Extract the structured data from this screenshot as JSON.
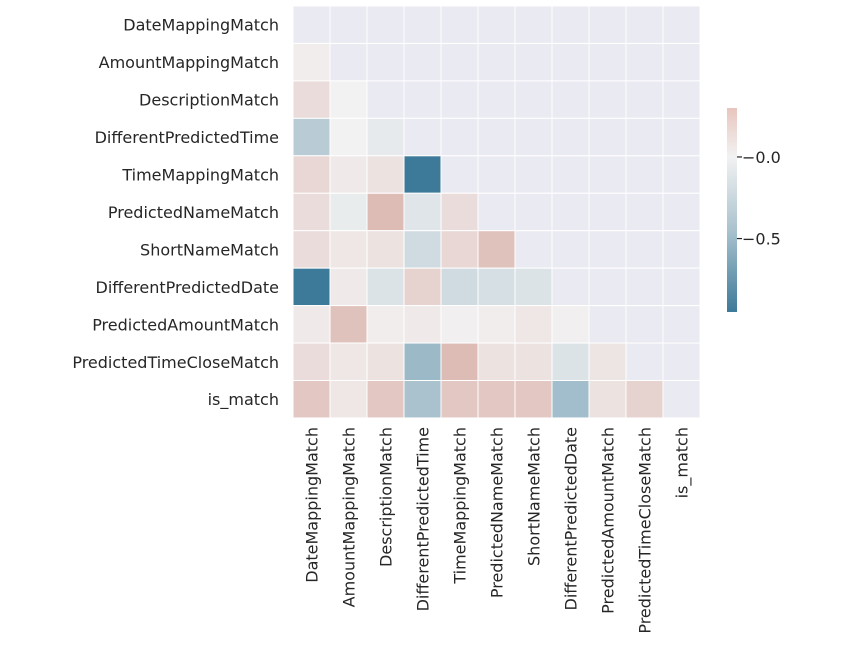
{
  "chart_data": {
    "type": "heatmap",
    "rows": [
      "DateMappingMatch",
      "AmountMappingMatch",
      "DescriptionMatch",
      "DifferentPredictedTime",
      "TimeMappingMatch",
      "PredictedNameMatch",
      "ShortNameMatch",
      "DifferentPredictedDate",
      "PredictedAmountMatch",
      "PredictedTimeCloseMatch",
      "is_match"
    ],
    "columns": [
      "DateMappingMatch",
      "AmountMappingMatch",
      "DescriptionMatch",
      "DifferentPredictedTime",
      "TimeMappingMatch",
      "PredictedNameMatch",
      "ShortNameMatch",
      "DifferentPredictedDate",
      "PredictedAmountMatch",
      "PredictedTimeCloseMatch",
      "is_match"
    ],
    "mask": "upper_triangle_including_diagonal",
    "values": [
      [
        null,
        null,
        null,
        null,
        null,
        null,
        null,
        null,
        null,
        null,
        null
      ],
      [
        0.02,
        null,
        null,
        null,
        null,
        null,
        null,
        null,
        null,
        null,
        null
      ],
      [
        0.08,
        0.0,
        null,
        null,
        null,
        null,
        null,
        null,
        null,
        null,
        null
      ],
      [
        -0.3,
        0.0,
        -0.06,
        null,
        null,
        null,
        null,
        null,
        null,
        null,
        null
      ],
      [
        0.1,
        0.03,
        0.06,
        -0.95,
        null,
        null,
        null,
        null,
        null,
        null,
        null
      ],
      [
        0.08,
        -0.05,
        0.2,
        -0.1,
        0.08,
        null,
        null,
        null,
        null,
        null,
        null
      ],
      [
        0.08,
        0.04,
        0.06,
        -0.18,
        0.1,
        0.18,
        null,
        null,
        null,
        null,
        null
      ],
      [
        -0.95,
        0.03,
        -0.12,
        0.12,
        -0.18,
        -0.15,
        -0.12,
        null,
        null,
        null,
        null
      ],
      [
        0.03,
        0.18,
        0.02,
        0.03,
        0.01,
        0.02,
        0.04,
        0.01,
        null,
        null,
        null
      ],
      [
        0.08,
        0.04,
        0.06,
        -0.45,
        0.2,
        0.06,
        0.06,
        -0.12,
        0.05,
        null,
        null
      ],
      [
        0.16,
        0.04,
        0.16,
        -0.38,
        0.16,
        0.16,
        0.16,
        -0.42,
        0.06,
        0.12,
        null
      ]
    ],
    "colorbar": {
      "ticks": [
        {
          "value": 0.0,
          "label": "−0.0"
        },
        {
          "value": -0.5,
          "label": "−0.5"
        }
      ],
      "range": [
        -0.95,
        0.3
      ],
      "colormap": "diverging_blue_red",
      "neg_color": "#3d7a99",
      "mid_color": "#f2f2f2",
      "pos_color": "#c5796c",
      "masked_color": "#eaeaf2"
    }
  }
}
